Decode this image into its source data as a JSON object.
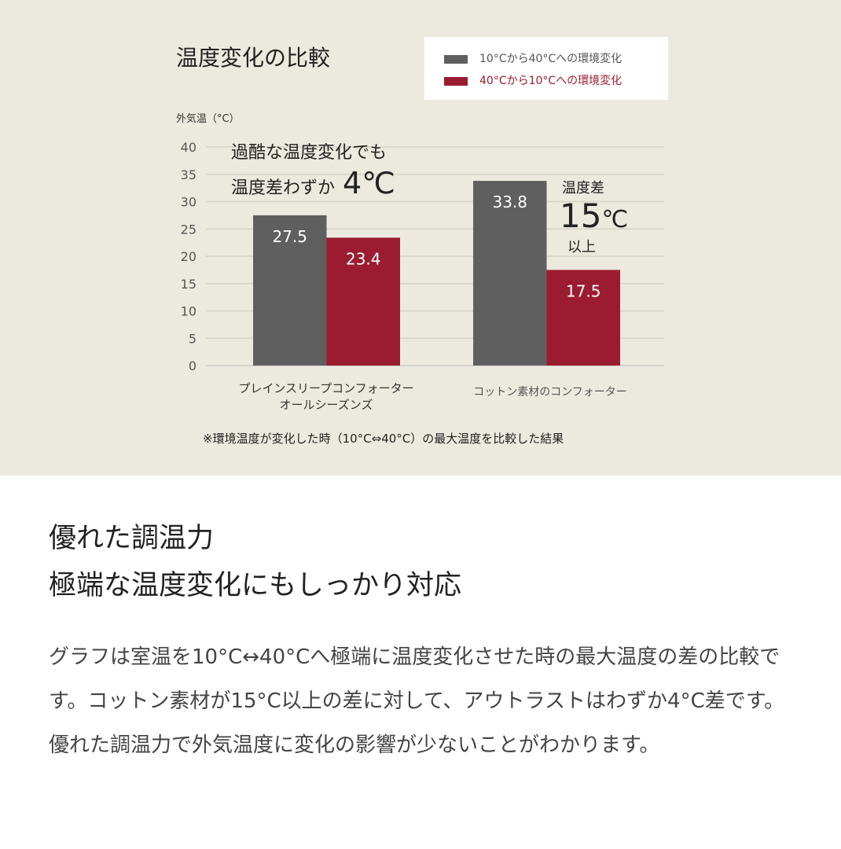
{
  "chart_data": {
    "type": "bar",
    "title": "温度変化の比較",
    "ylabel": "外気温（°C）",
    "ylim": [
      0,
      40
    ],
    "yticks": [
      0,
      5,
      10,
      15,
      20,
      25,
      30,
      35,
      40
    ],
    "grid": true,
    "legend_position": "top-right",
    "categories": [
      "プレインスリープコンフォーター\nオールシーズンズ",
      "コットン素材のコンフォーター"
    ],
    "series": [
      {
        "name": "10°Cから40°Cへの環境変化",
        "color": "#5f5f5f",
        "values": [
          27.5,
          33.8
        ]
      },
      {
        "name": "40°Cから10°Cへの環境変化",
        "color": "#9b1c30",
        "values": [
          23.4,
          17.5
        ]
      }
    ],
    "annotations": {
      "a1_line1": "過酷な温度変化でも",
      "a1_line2": "温度差わずか",
      "a1_big": "4℃",
      "a2_top": "温度差",
      "a2_num": "15",
      "a2_unit": "℃",
      "a2_bottom": "以上"
    },
    "note": "※環境温度が変化した時（10°C⇔40°C）の最大温度を比較した結果"
  },
  "headline": {
    "line1": "優れた調温力",
    "line2": "極端な温度変化にもしっかり対応"
  },
  "body": "グラフは室温を10°C↔40°Cへ極端に温度変化させた時の最大温度の差の比較です。コットン素材が15°C以上の差に対して、アウトラストはわずか4°C差です。優れた調温力で外気温度に変化の影響が少ないことがわかります。"
}
